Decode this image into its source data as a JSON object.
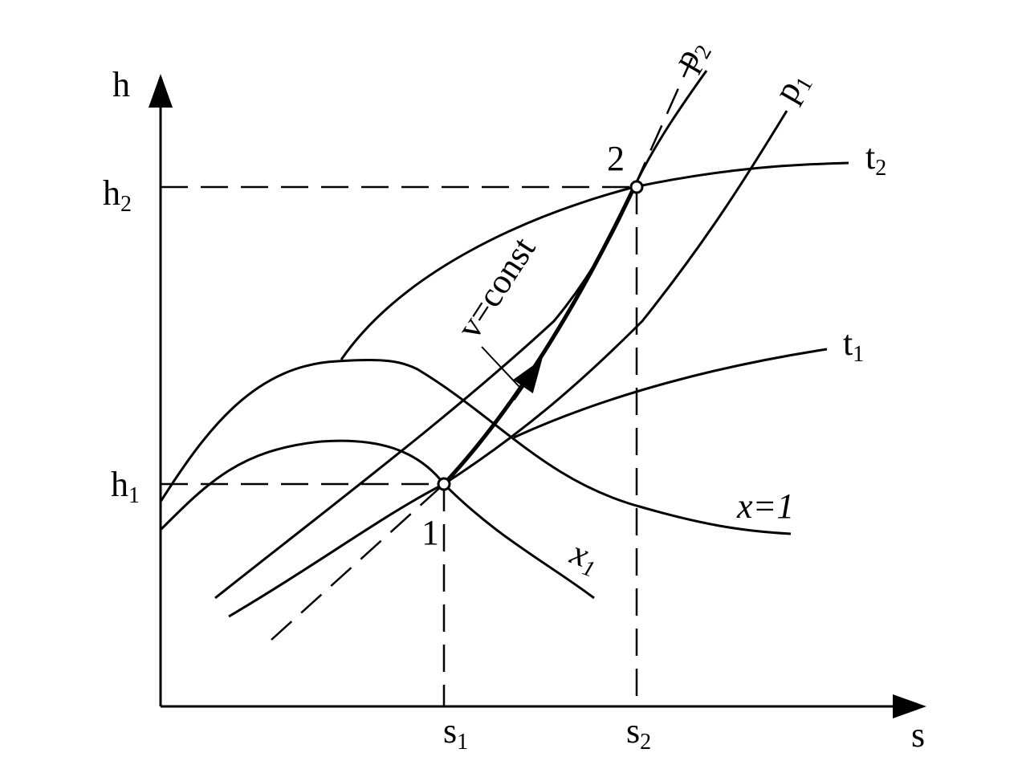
{
  "axes": {
    "y": "h",
    "x": "s"
  },
  "levels": {
    "h2": {
      "base": "h",
      "sub": "2"
    },
    "h1": {
      "base": "h",
      "sub": "1"
    },
    "s1": {
      "base": "s",
      "sub": "1"
    },
    "s2": {
      "base": "s",
      "sub": "2"
    }
  },
  "points": {
    "state1": "1",
    "state2": "2"
  },
  "curves": {
    "p2": {
      "base": "p",
      "sub": "2"
    },
    "p1": {
      "base": "p",
      "sub": "1"
    },
    "t2": {
      "base": "t",
      "sub": "2"
    },
    "t1": {
      "base": "t",
      "sub": "1"
    },
    "x_sat": "x=1",
    "x1": {
      "base": "x",
      "sub": "1"
    },
    "process": "v=const"
  }
}
